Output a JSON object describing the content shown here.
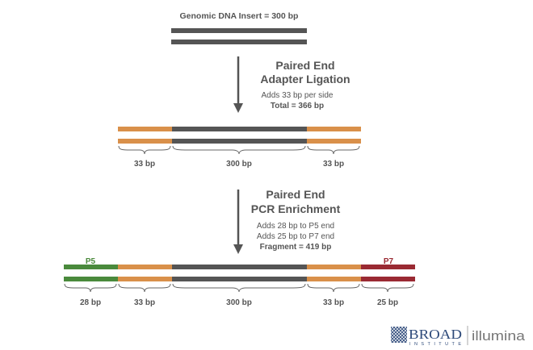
{
  "insert_title": "Genomic DNA Insert = 300 bp",
  "step1": {
    "title_line1": "Paired End",
    "title_line2": "Adapter Ligation",
    "note1": "Adds 33 bp per side",
    "note2": "Total = 366 bp"
  },
  "step2": {
    "title_line1": "Paired End",
    "title_line2": "PCR Enrichment",
    "note1": "Adds 28 bp to P5 end",
    "note2": "Adds 25 bp to P7 end",
    "note3": "Fragment = 419 bp"
  },
  "ligation_segments": [
    "33 bp",
    "300 bp",
    "33 bp"
  ],
  "pcr_segments": [
    "28 bp",
    "33 bp",
    "300 bp",
    "33 bp",
    "25 bp"
  ],
  "p5_label": "P5",
  "p7_label": "P7",
  "logos": {
    "broad_main": "BROAD",
    "broad_sub": "INSTITUTE",
    "illumina": "illumina"
  },
  "colors": {
    "insert": "#555555",
    "adapter": "#d9904a",
    "p5": "#4a8a3c",
    "p7": "#9a2a33",
    "arrow": "#555555",
    "broad_blue": "#2e4a7a"
  }
}
